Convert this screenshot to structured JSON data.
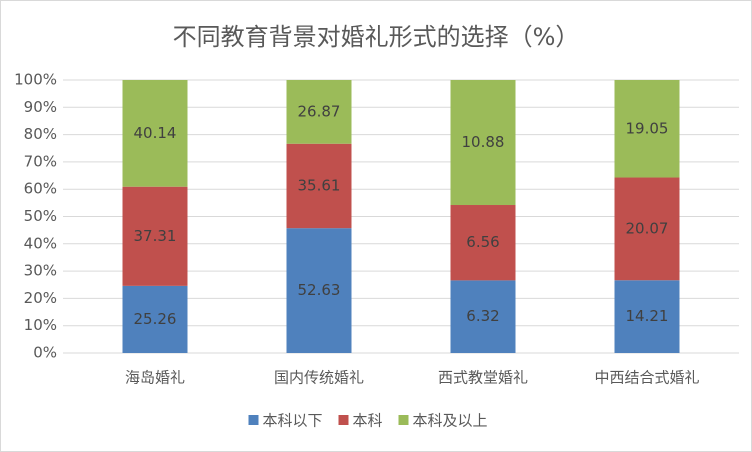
{
  "chart_data": {
    "type": "bar",
    "stack": "percent",
    "title": "不同教育背景对婚礼形式的选择（%）",
    "categories": [
      "海岛婚礼",
      "国内传统婚礼",
      "西式教堂婚礼",
      "中西结合式婚礼"
    ],
    "series": [
      {
        "name": "本科以下",
        "color": "#4f81bd",
        "values": [
          25.26,
          52.63,
          6.32,
          14.21
        ]
      },
      {
        "name": "本科",
        "color": "#c0504d",
        "values": [
          37.31,
          35.61,
          6.56,
          20.07
        ]
      },
      {
        "name": "本科及以上",
        "color": "#9bbb59",
        "values": [
          40.14,
          26.87,
          10.88,
          19.05
        ]
      }
    ],
    "ylim": [
      0,
      100
    ],
    "yticks": [
      {
        "value": 0,
        "label": "0%"
      },
      {
        "value": 10,
        "label": "10%"
      },
      {
        "value": 20,
        "label": "20%"
      },
      {
        "value": 30,
        "label": "30%"
      },
      {
        "value": 40,
        "label": "40%"
      },
      {
        "value": 50,
        "label": "50%"
      },
      {
        "value": 60,
        "label": "60%"
      },
      {
        "value": 70,
        "label": "70%"
      },
      {
        "value": 80,
        "label": "80%"
      },
      {
        "value": 90,
        "label": "90%"
      },
      {
        "value": 100,
        "label": "100%"
      }
    ],
    "grid": true,
    "legend": "bottom"
  }
}
